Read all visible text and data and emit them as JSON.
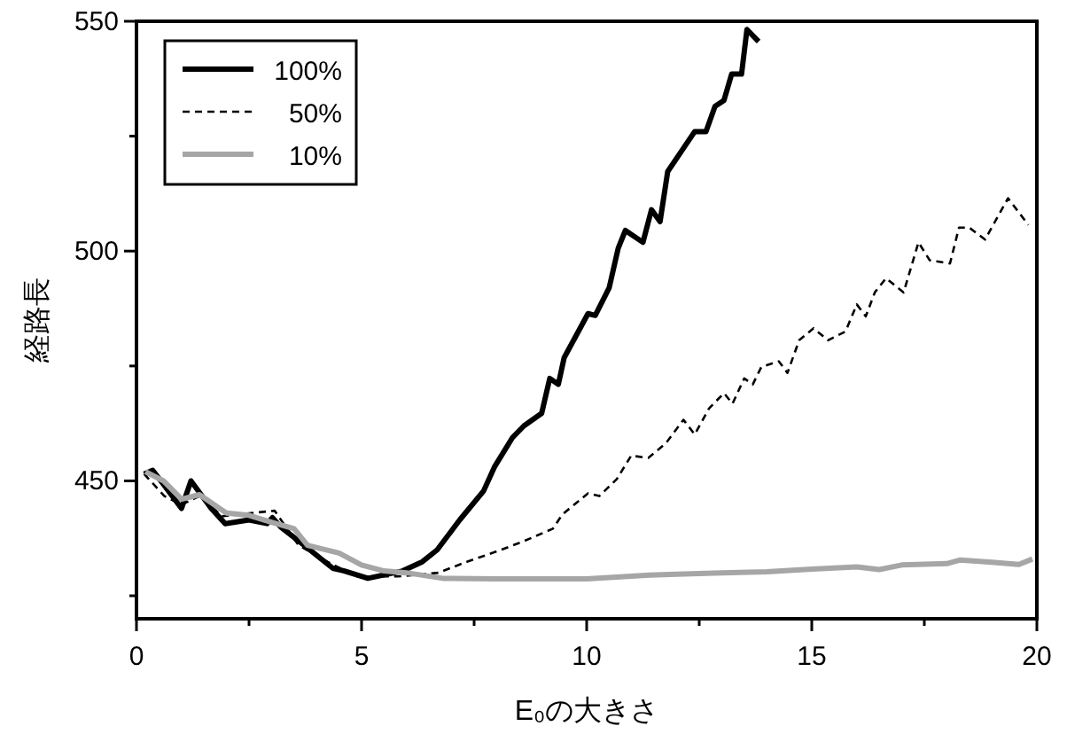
{
  "chart_data": {
    "type": "line",
    "xlabel": "E₀の大きさ",
    "ylabel": "経路長",
    "xlim": [
      0,
      20
    ],
    "ylim": [
      420,
      550
    ],
    "xticks": [
      0,
      {
        "value": 2.5,
        "label": null
      },
      5,
      {
        "value": 7.5,
        "label": null
      },
      10,
      {
        "value": 12.5,
        "label": null
      },
      15,
      {
        "value": 17.5,
        "label": null
      },
      20
    ],
    "yticks": [
      {
        "value": 425,
        "label": null
      },
      450,
      {
        "value": 475,
        "label": null
      },
      500,
      {
        "value": 525,
        "label": null
      },
      550
    ],
    "grid": false,
    "legend": "top left",
    "marker": "none",
    "series": [
      {
        "name": "100%",
        "color": "#000000",
        "line_style": "solid",
        "x": [
          0.17,
          0.36,
          0.62,
          1.0,
          1.21,
          1.66,
          1.97,
          2.5,
          2.9,
          3.02,
          3.2,
          3.7,
          4.36,
          4.62,
          5.14,
          5.91,
          6.35,
          6.68,
          7.18,
          7.71,
          7.95,
          8.35,
          8.61,
          9.0,
          9.18,
          9.37,
          9.5,
          10.03,
          10.19,
          10.5,
          10.7,
          10.86,
          11.25,
          11.44,
          11.63,
          11.8,
          12.4,
          12.65,
          12.85,
          13.05,
          13.22,
          13.44,
          13.56,
          13.82
        ],
        "values": [
          451.5,
          452.3,
          449,
          444,
          450,
          444,
          440.7,
          441.5,
          440.7,
          442,
          440,
          436.2,
          431,
          430.4,
          428.8,
          430.4,
          432.4,
          435,
          441.5,
          447.8,
          453,
          459.4,
          462,
          464.7,
          472.3,
          471,
          476.8,
          486.4,
          486,
          492,
          500.6,
          504.5,
          501.9,
          509,
          506.4,
          517.3,
          526,
          526,
          531.5,
          532.8,
          538.5,
          538.5,
          548.2,
          545.6
        ]
      },
      {
        "name": "50%",
        "color": "#000000",
        "line_style": "dashed",
        "x": [
          0.17,
          0.62,
          1.0,
          1.4,
          1.9,
          2.55,
          3.07,
          3.6,
          4.24,
          4.9,
          5.8,
          6.7,
          7.34,
          8.1,
          8.61,
          9.25,
          9.46,
          10.03,
          10.28,
          10.67,
          10.99,
          11.37,
          11.76,
          12.15,
          12.4,
          12.72,
          13.05,
          13.24,
          13.5,
          13.69,
          13.88,
          14.27,
          14.46,
          14.72,
          15.04,
          15.36,
          15.75,
          16.0,
          16.2,
          16.4,
          16.65,
          17.04,
          17.37,
          17.62,
          18.07,
          18.27,
          18.5,
          18.85,
          19.36,
          19.81
        ],
        "values": [
          451.5,
          446.7,
          444.8,
          446.7,
          442.3,
          443,
          443.5,
          436,
          432.4,
          429.2,
          429.2,
          430,
          432.4,
          435,
          436.9,
          439.6,
          442.7,
          447.3,
          446.7,
          450.4,
          455.5,
          455,
          458.2,
          463.3,
          460.1,
          465.8,
          469.1,
          466.8,
          472.3,
          471,
          474.8,
          476,
          473.5,
          480.6,
          483.2,
          480.6,
          482.5,
          488.4,
          485.8,
          491,
          494.1,
          491,
          501.9,
          498,
          497.3,
          505.1,
          505.1,
          502.5,
          511.5,
          505.7
        ]
      },
      {
        "name": "10%",
        "color": "#a6a6a6",
        "line_style": "solid",
        "x": [
          0.2,
          0.6,
          1.0,
          1.4,
          2.0,
          2.5,
          3.0,
          3.5,
          3.8,
          4.5,
          5.0,
          5.5,
          6.0,
          6.8,
          8,
          10,
          11.4,
          12,
          13,
          14,
          15,
          16,
          16.5,
          17,
          18,
          18.3,
          19,
          19.6,
          19.9
        ],
        "values": [
          452,
          450,
          446,
          447,
          443,
          442.5,
          441,
          439.6,
          436,
          434.3,
          431.7,
          430.4,
          430,
          428.8,
          428.7,
          428.7,
          429.5,
          429.7,
          430,
          430.2,
          430.8,
          431.3,
          430.7,
          431.7,
          432,
          432.8,
          432.3,
          431.8,
          433
        ]
      }
    ]
  }
}
